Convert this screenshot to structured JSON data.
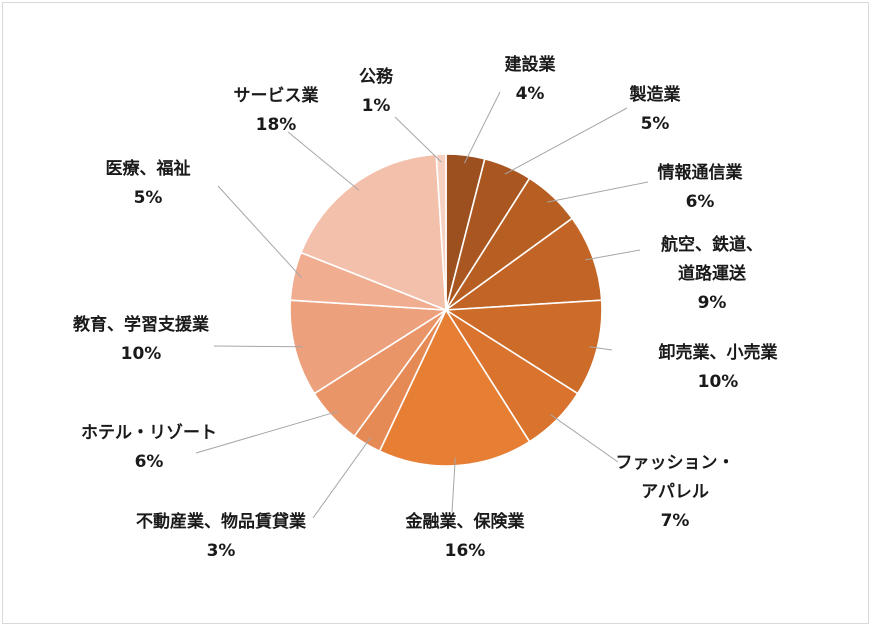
{
  "chart_data": {
    "type": "pie",
    "title": "",
    "slices": [
      {
        "category": "建設業",
        "label_lines": [
          "建設業"
        ],
        "value": 4,
        "value_label": "4%",
        "color": "#9c4f1f"
      },
      {
        "category": "製造業",
        "label_lines": [
          "製造業"
        ],
        "value": 5,
        "value_label": "5%",
        "color": "#a95620"
      },
      {
        "category": "情報通信業",
        "label_lines": [
          "情報通信業"
        ],
        "value": 6,
        "value_label": "6%",
        "color": "#b75e22"
      },
      {
        "category": "航空、鉄道、道路運送",
        "label_lines": [
          "航空、鉄道、",
          "道路運送"
        ],
        "value": 9,
        "value_label": "9%",
        "color": "#c26425"
      },
      {
        "category": "卸売業、小売業",
        "label_lines": [
          "卸売業、小売業"
        ],
        "value": 10,
        "value_label": "10%",
        "color": "#cd6b29"
      },
      {
        "category": "ファッション・アパレル",
        "label_lines": [
          "ファッション・",
          "アパレル"
        ],
        "value": 7,
        "value_label": "7%",
        "color": "#d9732d"
      },
      {
        "category": "金融業、保険業",
        "label_lines": [
          "金融業、保険業"
        ],
        "value": 16,
        "value_label": "16%",
        "color": "#e67e34"
      },
      {
        "category": "不動産業、物品賃貸業",
        "label_lines": [
          "不動産業、物品賃貸業"
        ],
        "value": 3,
        "value_label": "3%",
        "color": "#e68a55"
      },
      {
        "category": "ホテル・リゾート",
        "label_lines": [
          "ホテル・リゾート"
        ],
        "value": 6,
        "value_label": "6%",
        "color": "#ea9567"
      },
      {
        "category": "教育、学習支援業",
        "label_lines": [
          "教育、学習支援業"
        ],
        "value": 10,
        "value_label": "10%",
        "color": "#eda07c"
      },
      {
        "category": "医療、福祉",
        "label_lines": [
          "医療、福祉"
        ],
        "value": 5,
        "value_label": "5%",
        "color": "#f0ad90"
      },
      {
        "category": "サービス業",
        "label_lines": [
          "サービス業"
        ],
        "value": 18,
        "value_label": "18%",
        "color": "#f3c0ab"
      },
      {
        "category": "公務",
        "label_lines": [
          "公務"
        ],
        "value": 1,
        "value_label": "1%",
        "color": "#f6d1c2"
      }
    ],
    "legend": "none",
    "data_labels": "outside-with-leader-lines"
  }
}
